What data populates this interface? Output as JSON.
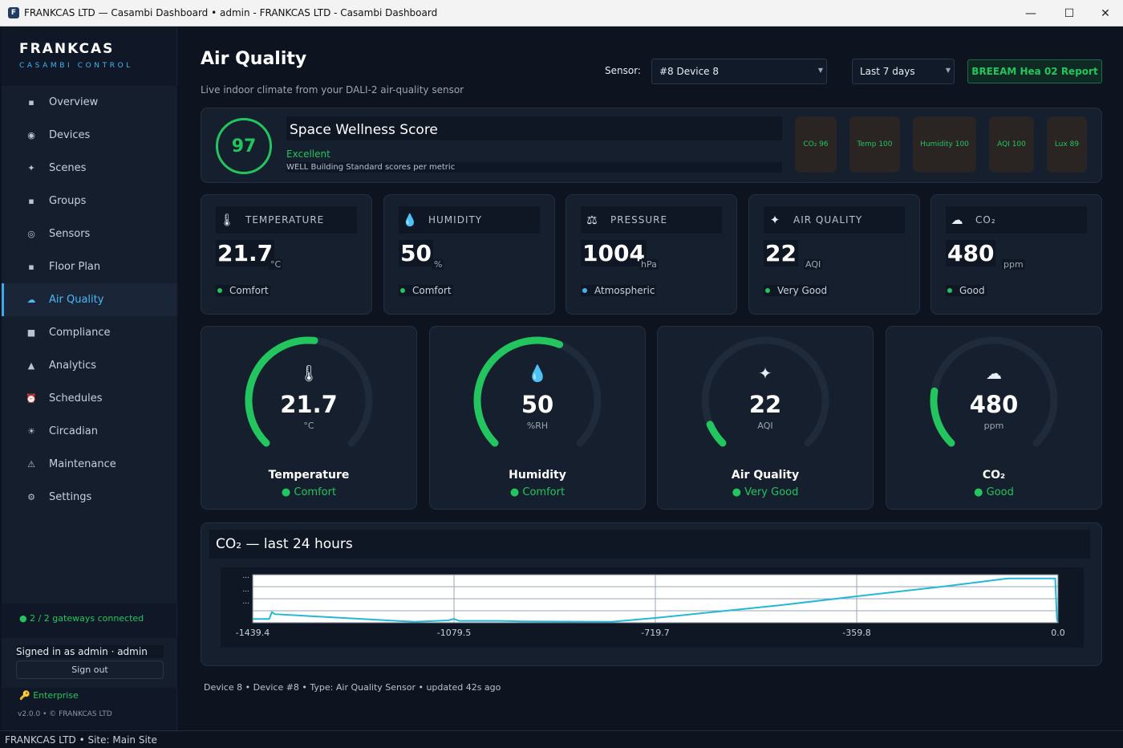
{
  "window": {
    "title": "FRANKCAS LTD — Casambi Dashboard  •  admin - FRANKCAS LTD - Casambi Dashboard",
    "app_icon": "F",
    "minimize": "—",
    "maximize": "☐",
    "close": "✕"
  },
  "brand": {
    "name": "FRANKCAS",
    "subtitle": "CASAMBI CONTROL"
  },
  "nav": [
    {
      "label": "Overview",
      "icon": "square-dot-icon",
      "glyph": "▪"
    },
    {
      "label": "Devices",
      "icon": "device-icon",
      "glyph": "◉"
    },
    {
      "label": "Scenes",
      "icon": "sparkle-icon",
      "glyph": "✦"
    },
    {
      "label": "Groups",
      "icon": "grid-icon",
      "glyph": "▪"
    },
    {
      "label": "Sensors",
      "icon": "target-icon",
      "glyph": "◎"
    },
    {
      "label": "Floor Plan",
      "icon": "floorplan-icon",
      "glyph": "▪"
    },
    {
      "label": "Air Quality",
      "icon": "cloud-icon",
      "glyph": "☁",
      "active": true
    },
    {
      "label": "Compliance",
      "icon": "checkbox-icon",
      "glyph": "■"
    },
    {
      "label": "Analytics",
      "icon": "triangle-icon",
      "glyph": "▲"
    },
    {
      "label": "Schedules",
      "icon": "alarm-clock-icon",
      "glyph": "⏰"
    },
    {
      "label": "Circadian",
      "icon": "sun-icon",
      "glyph": "☀"
    },
    {
      "label": "Maintenance",
      "icon": "warning-icon",
      "glyph": "⚠"
    },
    {
      "label": "Settings",
      "icon": "gear-icon",
      "glyph": "⚙"
    }
  ],
  "sidebar_footer": {
    "gateways": "● 2 / 2 gateways connected",
    "signed_in": "Signed in as  admin · admin",
    "sign_out": "Sign out",
    "tier": "🔑  Enterprise",
    "version": "v2.0.0  •  © FRANKCAS LTD"
  },
  "statusbar": "FRANKCAS LTD  •  Site: Main Site",
  "header": {
    "title": "Air Quality",
    "subtitle": "Live indoor climate from your DALI-2 air-quality sensor",
    "sensor_label": "Sensor:",
    "sensor_value": "#8  Device 8",
    "range_value": "Last 7 days",
    "report_button": "BREEAM Hea 02 Report"
  },
  "wellness": {
    "score": "97",
    "title": "Space Wellness Score",
    "grade": "Excellent",
    "description": "WELL Building Standard scores per metric",
    "pills": [
      "CO₂  96",
      "Temp  100",
      "Humidity  100",
      "AQI  100",
      "Lux  89"
    ]
  },
  "metrics": [
    {
      "label": "TEMPERATURE",
      "icon": "thermometer-icon",
      "glyph": "🌡",
      "value": "21.7",
      "unit": "°C",
      "status": "Comfort",
      "dot": "#22c55e"
    },
    {
      "label": "HUMIDITY",
      "icon": "droplet-icon",
      "glyph": "💧",
      "value": "50",
      "unit": "%",
      "status": "Comfort",
      "dot": "#22c55e"
    },
    {
      "label": "PRESSURE",
      "icon": "scale-icon",
      "glyph": "⚖",
      "value": "1004",
      "unit": "hPa",
      "status": "Atmospheric",
      "dot": "#3fb6f2"
    },
    {
      "label": "AIR QUALITY",
      "icon": "sparkle-icon",
      "glyph": "✦",
      "value": "22",
      "unit": "AQI",
      "status": "Very Good",
      "dot": "#22c55e"
    },
    {
      "label": "CO₂",
      "icon": "cloud-icon",
      "glyph": "☁",
      "value": "480",
      "unit": "ppm",
      "status": "Good",
      "dot": "#22c55e"
    }
  ],
  "gauges": [
    {
      "name": "Temperature",
      "icon": "thermometer-icon",
      "glyph": "🌡",
      "value": "21.7",
      "unit": "°C",
      "status": "● Comfort",
      "fill": 0.52
    },
    {
      "name": "Humidity",
      "icon": "droplet-icon",
      "glyph": "💧",
      "value": "50",
      "unit": "%RH",
      "status": "● Comfort",
      "fill": 0.58
    },
    {
      "name": "Air Quality",
      "icon": "sparkle-icon",
      "glyph": "✦",
      "value": "22",
      "unit": "AQI",
      "status": "● Very Good",
      "fill": 0.08
    },
    {
      "name": "CO₂",
      "icon": "cloud-icon",
      "glyph": "☁",
      "value": "480",
      "unit": "ppm",
      "status": "● Good",
      "fill": 0.2
    }
  ],
  "colors": {
    "accent": "#3fb6f2",
    "good": "#22c55e",
    "line": "#22b8d6"
  },
  "chart_title": "CO₂ — last 24 hours",
  "chart_data": {
    "type": "line",
    "title": "CO₂ — last 24 hours",
    "xlabel": "",
    "ylabel": "",
    "xlim": [
      -1439.4,
      0.0
    ],
    "ylim": [
      0,
      100
    ],
    "x_ticks": [
      "-1439.4",
      "-1079.5",
      "-719.7",
      "-359.8",
      "0.0"
    ],
    "y_ticks": [
      "...",
      "...",
      "..."
    ],
    "grid": true,
    "series": [
      {
        "x": [
          -1439.4,
          -1410,
          -1405,
          -1400,
          -1150,
          -1090,
          -1080,
          -1070,
          -1000,
          -960,
          -800,
          -720,
          -500,
          -360,
          -200,
          -90,
          -30,
          -5,
          -2,
          0
        ],
        "y": [
          8,
          8,
          22,
          18,
          2,
          5,
          8,
          4,
          4,
          3,
          2,
          10,
          36,
          55,
          76,
          92,
          92,
          92,
          8,
          0
        ]
      }
    ]
  },
  "footer": "Device 8  •  Device #8  •  Type: Air Quality Sensor  •  updated 42s ago"
}
